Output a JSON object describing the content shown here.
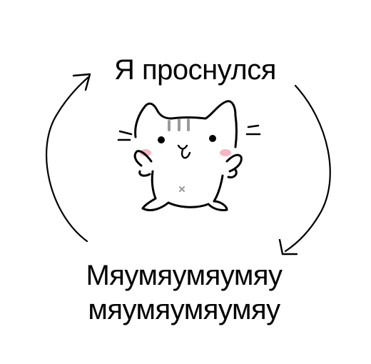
{
  "caption": {
    "top": "Я проснулся",
    "bottom_line_1": "Мяумяумяумяу",
    "bottom_line_2": "мяумяумяумяу"
  },
  "colors": {
    "background": "#ffffff",
    "ink": "#000000",
    "blush": "#f4b6c2",
    "stripes": "#9a9a9a"
  },
  "icons": {
    "center": "cat-doodle-icon",
    "left": "cycle-arrow-up-icon",
    "right": "cycle-arrow-down-icon"
  }
}
